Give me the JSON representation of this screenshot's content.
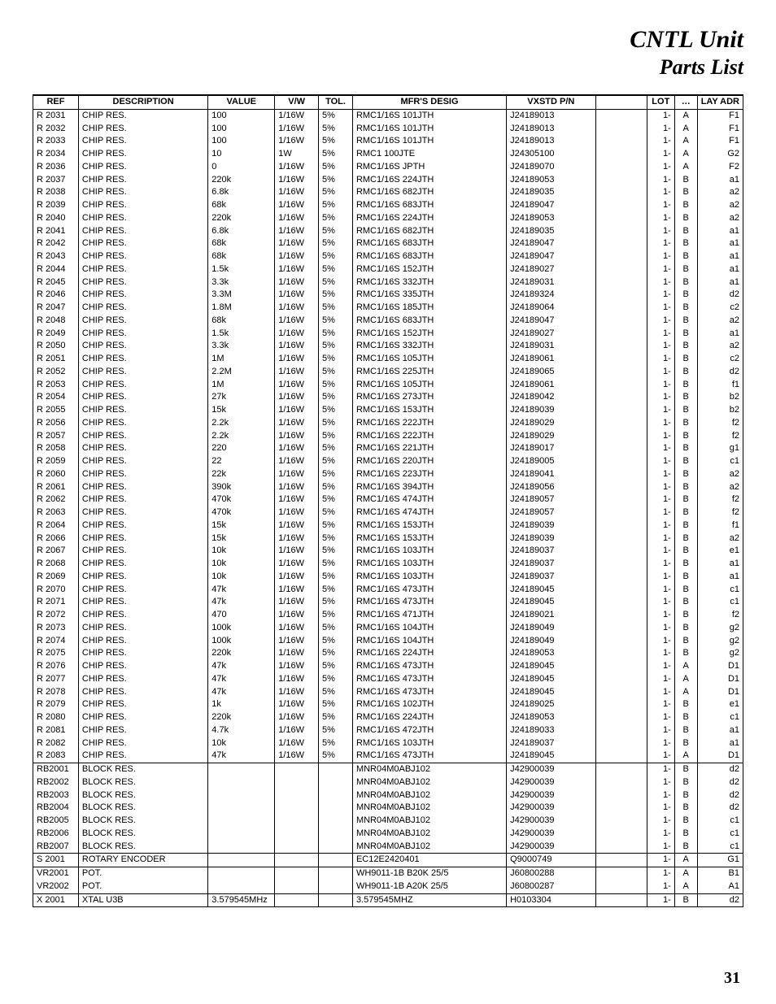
{
  "title": {
    "line1": "CNTL Unit",
    "line2": "Parts List"
  },
  "page_number": "31",
  "columns": [
    "REF",
    "DESCRIPTION",
    "VALUE",
    "V/W",
    "TOL.",
    "MFR'S DESIG",
    "VXSTD P/N",
    "",
    "LOT",
    "…",
    "LAY ADR"
  ],
  "groups": [
    {
      "rows": [
        [
          "R 2031",
          "CHIP RES.",
          "100",
          "1/16W",
          "5%",
          "RMC1/16S 101JTH",
          "J24189013",
          "",
          "1-",
          "A",
          "F1"
        ],
        [
          "R 2032",
          "CHIP RES.",
          "100",
          "1/16W",
          "5%",
          "RMC1/16S 101JTH",
          "J24189013",
          "",
          "1-",
          "A",
          "F1"
        ],
        [
          "R 2033",
          "CHIP RES.",
          "100",
          "1/16W",
          "5%",
          "RMC1/16S 101JTH",
          "J24189013",
          "",
          "1-",
          "A",
          "F1"
        ],
        [
          "R 2034",
          "CHIP RES.",
          "10",
          "1W",
          "5%",
          "RMC1 100JTE",
          "J24305100",
          "",
          "1-",
          "A",
          "G2"
        ],
        [
          "R 2036",
          "CHIP RES.",
          "0",
          "1/16W",
          "5%",
          "RMC1/16S JPTH",
          "J24189070",
          "",
          "1-",
          "A",
          "F2"
        ],
        [
          "R 2037",
          "CHIP RES.",
          "220k",
          "1/16W",
          "5%",
          "RMC1/16S 224JTH",
          "J24189053",
          "",
          "1-",
          "B",
          "a1"
        ],
        [
          "R 2038",
          "CHIP RES.",
          "6.8k",
          "1/16W",
          "5%",
          "RMC1/16S 682JTH",
          "J24189035",
          "",
          "1-",
          "B",
          "a2"
        ],
        [
          "R 2039",
          "CHIP RES.",
          "68k",
          "1/16W",
          "5%",
          "RMC1/16S 683JTH",
          "J24189047",
          "",
          "1-",
          "B",
          "a2"
        ],
        [
          "R 2040",
          "CHIP RES.",
          "220k",
          "1/16W",
          "5%",
          "RMC1/16S 224JTH",
          "J24189053",
          "",
          "1-",
          "B",
          "a2"
        ],
        [
          "R 2041",
          "CHIP RES.",
          "6.8k",
          "1/16W",
          "5%",
          "RMC1/16S 682JTH",
          "J24189035",
          "",
          "1-",
          "B",
          "a1"
        ],
        [
          "R 2042",
          "CHIP RES.",
          "68k",
          "1/16W",
          "5%",
          "RMC1/16S 683JTH",
          "J24189047",
          "",
          "1-",
          "B",
          "a1"
        ],
        [
          "R 2043",
          "CHIP RES.",
          "68k",
          "1/16W",
          "5%",
          "RMC1/16S 683JTH",
          "J24189047",
          "",
          "1-",
          "B",
          "a1"
        ],
        [
          "R 2044",
          "CHIP RES.",
          "1.5k",
          "1/16W",
          "5%",
          "RMC1/16S 152JTH",
          "J24189027",
          "",
          "1-",
          "B",
          "a1"
        ],
        [
          "R 2045",
          "CHIP RES.",
          "3.3k",
          "1/16W",
          "5%",
          "RMC1/16S 332JTH",
          "J24189031",
          "",
          "1-",
          "B",
          "a1"
        ],
        [
          "R 2046",
          "CHIP RES.",
          "3.3M",
          "1/16W",
          "5%",
          "RMC1/16S 335JTH",
          "J24189324",
          "",
          "1-",
          "B",
          "d2"
        ],
        [
          "R 2047",
          "CHIP RES.",
          "1.8M",
          "1/16W",
          "5%",
          "RMC1/16S 185JTH",
          "J24189064",
          "",
          "1-",
          "B",
          "c2"
        ],
        [
          "R 2048",
          "CHIP RES.",
          "68k",
          "1/16W",
          "5%",
          "RMC1/16S 683JTH",
          "J24189047",
          "",
          "1-",
          "B",
          "a2"
        ],
        [
          "R 2049",
          "CHIP RES.",
          "1.5k",
          "1/16W",
          "5%",
          "RMC1/16S 152JTH",
          "J24189027",
          "",
          "1-",
          "B",
          "a1"
        ],
        [
          "R 2050",
          "CHIP RES.",
          "3.3k",
          "1/16W",
          "5%",
          "RMC1/16S 332JTH",
          "J24189031",
          "",
          "1-",
          "B",
          "a2"
        ],
        [
          "R 2051",
          "CHIP RES.",
          "1M",
          "1/16W",
          "5%",
          "RMC1/16S 105JTH",
          "J24189061",
          "",
          "1-",
          "B",
          "c2"
        ],
        [
          "R 2052",
          "CHIP RES.",
          "2.2M",
          "1/16W",
          "5%",
          "RMC1/16S 225JTH",
          "J24189065",
          "",
          "1-",
          "B",
          "d2"
        ],
        [
          "R 2053",
          "CHIP RES.",
          "1M",
          "1/16W",
          "5%",
          "RMC1/16S 105JTH",
          "J24189061",
          "",
          "1-",
          "B",
          "f1"
        ],
        [
          "R 2054",
          "CHIP RES.",
          "27k",
          "1/16W",
          "5%",
          "RMC1/16S 273JTH",
          "J24189042",
          "",
          "1-",
          "B",
          "b2"
        ],
        [
          "R 2055",
          "CHIP RES.",
          "15k",
          "1/16W",
          "5%",
          "RMC1/16S 153JTH",
          "J24189039",
          "",
          "1-",
          "B",
          "b2"
        ],
        [
          "R 2056",
          "CHIP RES.",
          "2.2k",
          "1/16W",
          "5%",
          "RMC1/16S 222JTH",
          "J24189029",
          "",
          "1-",
          "B",
          "f2"
        ],
        [
          "R 2057",
          "CHIP RES.",
          "2.2k",
          "1/16W",
          "5%",
          "RMC1/16S 222JTH",
          "J24189029",
          "",
          "1-",
          "B",
          "f2"
        ],
        [
          "R 2058",
          "CHIP RES.",
          "220",
          "1/16W",
          "5%",
          "RMC1/16S 221JTH",
          "J24189017",
          "",
          "1-",
          "B",
          "g1"
        ],
        [
          "R 2059",
          "CHIP RES.",
          "22",
          "1/16W",
          "5%",
          "RMC1/16S 220JTH",
          "J24189005",
          "",
          "1-",
          "B",
          "c1"
        ],
        [
          "R 2060",
          "CHIP RES.",
          "22k",
          "1/16W",
          "5%",
          "RMC1/16S 223JTH",
          "J24189041",
          "",
          "1-",
          "B",
          "a2"
        ],
        [
          "R 2061",
          "CHIP RES.",
          "390k",
          "1/16W",
          "5%",
          "RMC1/16S 394JTH",
          "J24189056",
          "",
          "1-",
          "B",
          "a2"
        ],
        [
          "R 2062",
          "CHIP RES.",
          "470k",
          "1/16W",
          "5%",
          "RMC1/16S 474JTH",
          "J24189057",
          "",
          "1-",
          "B",
          "f2"
        ],
        [
          "R 2063",
          "CHIP RES.",
          "470k",
          "1/16W",
          "5%",
          "RMC1/16S 474JTH",
          "J24189057",
          "",
          "1-",
          "B",
          "f2"
        ],
        [
          "R 2064",
          "CHIP RES.",
          "15k",
          "1/16W",
          "5%",
          "RMC1/16S 153JTH",
          "J24189039",
          "",
          "1-",
          "B",
          "f1"
        ],
        [
          "R 2066",
          "CHIP RES.",
          "15k",
          "1/16W",
          "5%",
          "RMC1/16S 153JTH",
          "J24189039",
          "",
          "1-",
          "B",
          "a2"
        ],
        [
          "R 2067",
          "CHIP RES.",
          "10k",
          "1/16W",
          "5%",
          "RMC1/16S 103JTH",
          "J24189037",
          "",
          "1-",
          "B",
          "e1"
        ],
        [
          "R 2068",
          "CHIP RES.",
          "10k",
          "1/16W",
          "5%",
          "RMC1/16S 103JTH",
          "J24189037",
          "",
          "1-",
          "B",
          "a1"
        ],
        [
          "R 2069",
          "CHIP RES.",
          "10k",
          "1/16W",
          "5%",
          "RMC1/16S 103JTH",
          "J24189037",
          "",
          "1-",
          "B",
          "a1"
        ],
        [
          "R 2070",
          "CHIP RES.",
          "47k",
          "1/16W",
          "5%",
          "RMC1/16S 473JTH",
          "J24189045",
          "",
          "1-",
          "B",
          "c1"
        ],
        [
          "R 2071",
          "CHIP RES.",
          "47k",
          "1/16W",
          "5%",
          "RMC1/16S 473JTH",
          "J24189045",
          "",
          "1-",
          "B",
          "c1"
        ],
        [
          "R 2072",
          "CHIP RES.",
          "470",
          "1/16W",
          "5%",
          "RMC1/16S 471JTH",
          "J24189021",
          "",
          "1-",
          "B",
          "f2"
        ],
        [
          "R 2073",
          "CHIP RES.",
          "100k",
          "1/16W",
          "5%",
          "RMC1/16S 104JTH",
          "J24189049",
          "",
          "1-",
          "B",
          "g2"
        ],
        [
          "R 2074",
          "CHIP RES.",
          "100k",
          "1/16W",
          "5%",
          "RMC1/16S 104JTH",
          "J24189049",
          "",
          "1-",
          "B",
          "g2"
        ],
        [
          "R 2075",
          "CHIP RES.",
          "220k",
          "1/16W",
          "5%",
          "RMC1/16S 224JTH",
          "J24189053",
          "",
          "1-",
          "B",
          "g2"
        ],
        [
          "R 2076",
          "CHIP RES.",
          "47k",
          "1/16W",
          "5%",
          "RMC1/16S 473JTH",
          "J24189045",
          "",
          "1-",
          "A",
          "D1"
        ],
        [
          "R 2077",
          "CHIP RES.",
          "47k",
          "1/16W",
          "5%",
          "RMC1/16S 473JTH",
          "J24189045",
          "",
          "1-",
          "A",
          "D1"
        ],
        [
          "R 2078",
          "CHIP RES.",
          "47k",
          "1/16W",
          "5%",
          "RMC1/16S 473JTH",
          "J24189045",
          "",
          "1-",
          "A",
          "D1"
        ],
        [
          "R 2079",
          "CHIP RES.",
          "1k",
          "1/16W",
          "5%",
          "RMC1/16S 102JTH",
          "J24189025",
          "",
          "1-",
          "B",
          "e1"
        ],
        [
          "R 2080",
          "CHIP RES.",
          "220k",
          "1/16W",
          "5%",
          "RMC1/16S 224JTH",
          "J24189053",
          "",
          "1-",
          "B",
          "c1"
        ],
        [
          "R 2081",
          "CHIP RES.",
          "4.7k",
          "1/16W",
          "5%",
          "RMC1/16S 472JTH",
          "J24189033",
          "",
          "1-",
          "B",
          "a1"
        ],
        [
          "R 2082",
          "CHIP RES.",
          "10k",
          "1/16W",
          "5%",
          "RMC1/16S 103JTH",
          "J24189037",
          "",
          "1-",
          "B",
          "a1"
        ],
        [
          "R 2083",
          "CHIP RES.",
          "47k",
          "1/16W",
          "5%",
          "RMC1/16S 473JTH",
          "J24189045",
          "",
          "1-",
          "A",
          "D1"
        ]
      ]
    },
    {
      "rows": [
        [
          "RB2001",
          "BLOCK RES.",
          "",
          "",
          "",
          "MNR04M0ABJ102",
          "J42900039",
          "",
          "1-",
          "B",
          "d2"
        ],
        [
          "RB2002",
          "BLOCK RES.",
          "",
          "",
          "",
          "MNR04M0ABJ102",
          "J42900039",
          "",
          "1-",
          "B",
          "d2"
        ],
        [
          "RB2003",
          "BLOCK RES.",
          "",
          "",
          "",
          "MNR04M0ABJ102",
          "J42900039",
          "",
          "1-",
          "B",
          "d2"
        ],
        [
          "RB2004",
          "BLOCK RES.",
          "",
          "",
          "",
          "MNR04M0ABJ102",
          "J42900039",
          "",
          "1-",
          "B",
          "d2"
        ],
        [
          "RB2005",
          "BLOCK RES.",
          "",
          "",
          "",
          "MNR04M0ABJ102",
          "J42900039",
          "",
          "1-",
          "B",
          "c1"
        ],
        [
          "RB2006",
          "BLOCK RES.",
          "",
          "",
          "",
          "MNR04M0ABJ102",
          "J42900039",
          "",
          "1-",
          "B",
          "c1"
        ],
        [
          "RB2007",
          "BLOCK RES.",
          "",
          "",
          "",
          "MNR04M0ABJ102",
          "J42900039",
          "",
          "1-",
          "B",
          "c1"
        ]
      ]
    },
    {
      "rows": [
        [
          "S 2001",
          "ROTARY ENCODER",
          "",
          "",
          "",
          "EC12E2420401",
          "Q9000749",
          "",
          "1-",
          "A",
          "G1"
        ]
      ]
    },
    {
      "rows": [
        [
          "VR2001",
          "POT.",
          "",
          "",
          "",
          "WH9011-1B B20K 25/5",
          "J60800288",
          "",
          "1-",
          "A",
          "B1"
        ],
        [
          "VR2002",
          "POT.",
          "",
          "",
          "",
          "WH9011-1B A20K 25/5",
          "J60800287",
          "",
          "1-",
          "A",
          "A1"
        ]
      ]
    },
    {
      "rows": [
        [
          "X 2001",
          "XTAL U3B",
          "3.579545MHz",
          "",
          "",
          "3.579545MHZ",
          "H0103304",
          "",
          "1-",
          "B",
          "d2"
        ]
      ]
    }
  ]
}
